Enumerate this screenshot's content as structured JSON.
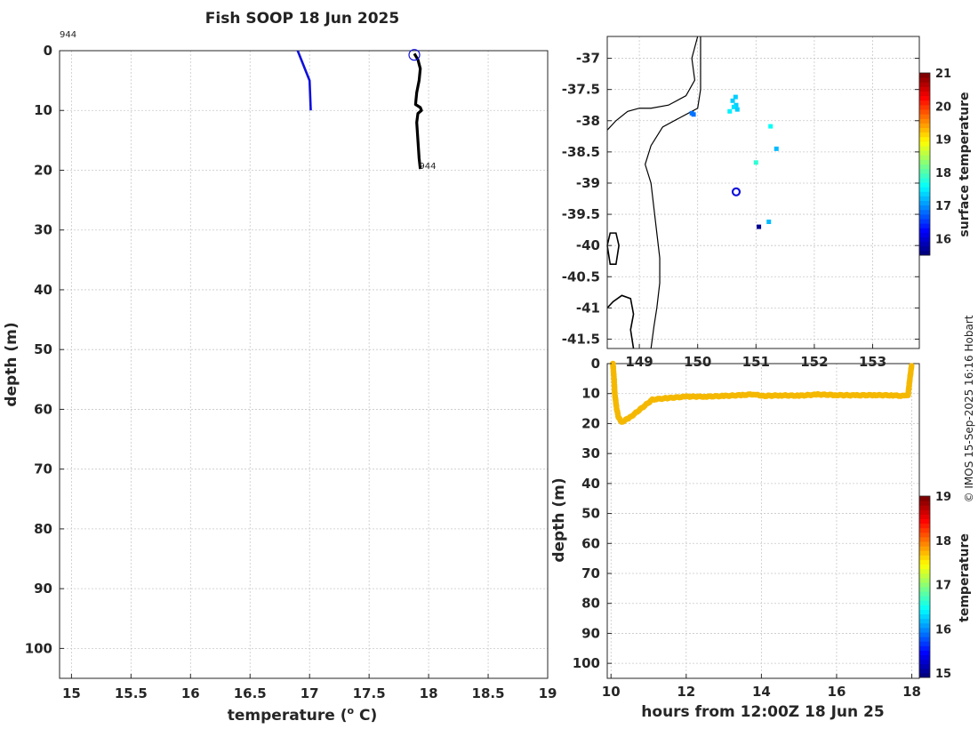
{
  "title": "Fish SOOP 18 Jun 2025",
  "credit": "© IMOS 15-Sep-2025 16:16 Hobart",
  "chart_data": [
    {
      "id": "profile",
      "type": "line",
      "xlabel": "temperature (",
      "xlabel_sup": "o",
      "xlabel_tail": " C)",
      "ylabel": "depth (m)",
      "xlim": [
        14.9,
        19.0
      ],
      "ylim": [
        0,
        105
      ],
      "y_reversed": true,
      "grid": true,
      "xticks": [
        15,
        15.5,
        16,
        16.5,
        17,
        17.5,
        18,
        18.5,
        19
      ],
      "xtick_labels": [
        "15",
        "15.5",
        "16",
        "16.5",
        "17",
        "17.5",
        "18",
        "18.5",
        "19"
      ],
      "yticks": [
        0,
        10,
        20,
        30,
        40,
        50,
        60,
        70,
        80,
        90,
        100
      ],
      "ytick_labels": [
        "0",
        "10",
        "20",
        "30",
        "40",
        "50",
        "60",
        "70",
        "80",
        "90",
        "100"
      ],
      "annotations": [
        {
          "text": "944",
          "x": 14.9,
          "y": -2.2
        },
        {
          "text": "944",
          "x": 17.92,
          "y": 19.8
        }
      ],
      "series": [
        {
          "color": "#1010dd",
          "temperature": [
            16.9,
            17.0,
            17.01
          ],
          "depth": [
            0,
            5,
            10
          ]
        },
        {
          "color": "#000000",
          "temperature": [
            17.88,
            17.91,
            17.93,
            17.92,
            17.9,
            17.89,
            17.93,
            17.94,
            17.91,
            17.9,
            17.91,
            17.92,
            17.93
          ],
          "depth": [
            0.5,
            1.5,
            3,
            5,
            7,
            9,
            9.5,
            10,
            10.5,
            12,
            15,
            18,
            19.8
          ]
        }
      ],
      "start_marker": {
        "temperature": 17.88,
        "depth": 0.7,
        "color": "#1010dd"
      }
    },
    {
      "id": "map",
      "type": "scatter",
      "xlim": [
        148.45,
        153.8
      ],
      "ylim": [
        -41.65,
        -36.65
      ],
      "grid": true,
      "xticks": [
        149,
        150,
        151,
        152,
        153
      ],
      "xtick_labels": [
        "149",
        "150",
        "151",
        "152",
        "153"
      ],
      "yticks": [
        -37,
        -37.5,
        -38,
        -38.5,
        -39,
        -39.5,
        -40,
        -40.5,
        -41,
        -41.5
      ],
      "ytick_labels": [
        "-37",
        "-37.5",
        "-38",
        "-38.5",
        "-39",
        "-39.5",
        "-40",
        "-40.5",
        "-41",
        "-41.5"
      ],
      "colorbar_label": "surface temperature",
      "colorbar_ticks": [
        16,
        17,
        18,
        19,
        20,
        21
      ],
      "colorbar_tick_labels": [
        "16",
        "17",
        "18",
        "19",
        "20",
        "21"
      ],
      "colorbar_range": [
        15.5,
        21
      ],
      "coastline": [
        [
          [
            150.0,
            -36.65
          ],
          [
            149.9,
            -37.0
          ],
          [
            149.95,
            -37.35
          ],
          [
            149.8,
            -37.6
          ],
          [
            149.5,
            -37.75
          ],
          [
            149.2,
            -37.8
          ],
          [
            149.0,
            -37.8
          ],
          [
            148.8,
            -37.85
          ],
          [
            148.6,
            -38.0
          ],
          [
            148.45,
            -38.15
          ]
        ]
      ],
      "shelf_edge": [
        [
          [
            150.05,
            -36.65
          ],
          [
            150.05,
            -37.5
          ],
          [
            150.0,
            -37.8
          ],
          [
            149.7,
            -37.95
          ],
          [
            149.4,
            -38.1
          ],
          [
            149.2,
            -38.4
          ],
          [
            149.1,
            -38.7
          ],
          [
            149.2,
            -39.0
          ],
          [
            149.25,
            -39.4
          ],
          [
            149.3,
            -39.8
          ],
          [
            149.35,
            -40.2
          ],
          [
            149.35,
            -40.6
          ],
          [
            149.3,
            -41.0
          ],
          [
            149.25,
            -41.3
          ],
          [
            149.2,
            -41.65
          ]
        ]
      ],
      "islands": [
        [
          [
            148.45,
            -40.0
          ],
          [
            148.5,
            -39.8
          ],
          [
            148.6,
            -39.8
          ],
          [
            148.65,
            -40.0
          ],
          [
            148.6,
            -40.3
          ],
          [
            148.5,
            -40.3
          ],
          [
            148.45,
            -40.0
          ]
        ]
      ],
      "tasmania_coast": [
        [
          [
            148.45,
            -41.0
          ],
          [
            148.55,
            -40.9
          ],
          [
            148.7,
            -40.8
          ],
          [
            148.85,
            -40.85
          ],
          [
            148.9,
            -41.1
          ],
          [
            148.85,
            -41.35
          ],
          [
            148.9,
            -41.65
          ]
        ]
      ],
      "points": [
        {
          "lon": 149.9,
          "lat": -37.88,
          "temp": 16.8
        },
        {
          "lon": 149.93,
          "lat": -37.9,
          "temp": 16.8
        },
        {
          "lon": 150.6,
          "lat": -37.68,
          "temp": 17.3
        },
        {
          "lon": 150.65,
          "lat": -37.62,
          "temp": 17.3
        },
        {
          "lon": 150.66,
          "lat": -37.75,
          "temp": 17.3
        },
        {
          "lon": 150.62,
          "lat": -37.78,
          "temp": 17.4
        },
        {
          "lon": 150.68,
          "lat": -37.82,
          "temp": 17.3
        },
        {
          "lon": 150.55,
          "lat": -37.85,
          "temp": 17.5
        },
        {
          "lon": 151.25,
          "lat": -38.09,
          "temp": 17.6
        },
        {
          "lon": 151.35,
          "lat": -38.45,
          "temp": 17.2
        },
        {
          "lon": 151.0,
          "lat": -38.67,
          "temp": 17.8
        },
        {
          "lon": 151.05,
          "lat": -39.7,
          "temp": 15.6
        },
        {
          "lon": 151.22,
          "lat": -39.62,
          "temp": 17.2
        }
      ],
      "start_marker": {
        "lon": 150.66,
        "lat": -39.14,
        "color": "#1010dd"
      }
    },
    {
      "id": "section",
      "type": "scatter",
      "xlabel": "hours from 12:00Z 18 Jun 25",
      "ylabel": "depth (m)",
      "xlim": [
        9.9,
        18.2
      ],
      "ylim": [
        0,
        105
      ],
      "y_reversed": true,
      "grid": true,
      "xticks": [
        10,
        12,
        14,
        16,
        18
      ],
      "xtick_labels": [
        "10",
        "12",
        "14",
        "16",
        "18"
      ],
      "yticks": [
        0,
        10,
        20,
        30,
        40,
        50,
        60,
        70,
        80,
        90,
        100
      ],
      "ytick_labels": [
        "0",
        "10",
        "20",
        "30",
        "40",
        "50",
        "60",
        "70",
        "80",
        "90",
        "100"
      ],
      "colorbar_label": "temperature",
      "colorbar_ticks": [
        15,
        16,
        17,
        18,
        19
      ],
      "colorbar_tick_labels": [
        "15",
        "16",
        "17",
        "18",
        "19"
      ],
      "colorbar_range": [
        14.9,
        19
      ],
      "marker_color": "#f5b800",
      "track": {
        "hours": [
          10.05,
          10.08,
          10.1,
          10.15,
          10.2,
          10.28,
          10.35,
          10.5,
          10.7,
          10.9,
          11.1,
          11.5,
          12.0,
          12.5,
          13.0,
          13.5,
          13.8,
          14.0,
          14.5,
          15.0,
          15.5,
          16.0,
          16.5,
          17.0,
          17.5,
          17.8,
          17.9,
          17.95,
          18.0
        ],
        "depth": [
          0,
          5,
          10,
          15,
          18,
          19.5,
          19,
          18,
          16,
          14,
          12,
          11.5,
          11,
          11,
          10.8,
          10.5,
          10.2,
          10.8,
          10.6,
          10.7,
          10.3,
          10.5,
          10.6,
          10.5,
          10.6,
          10.8,
          10.5,
          5,
          0
        ]
      }
    }
  ]
}
